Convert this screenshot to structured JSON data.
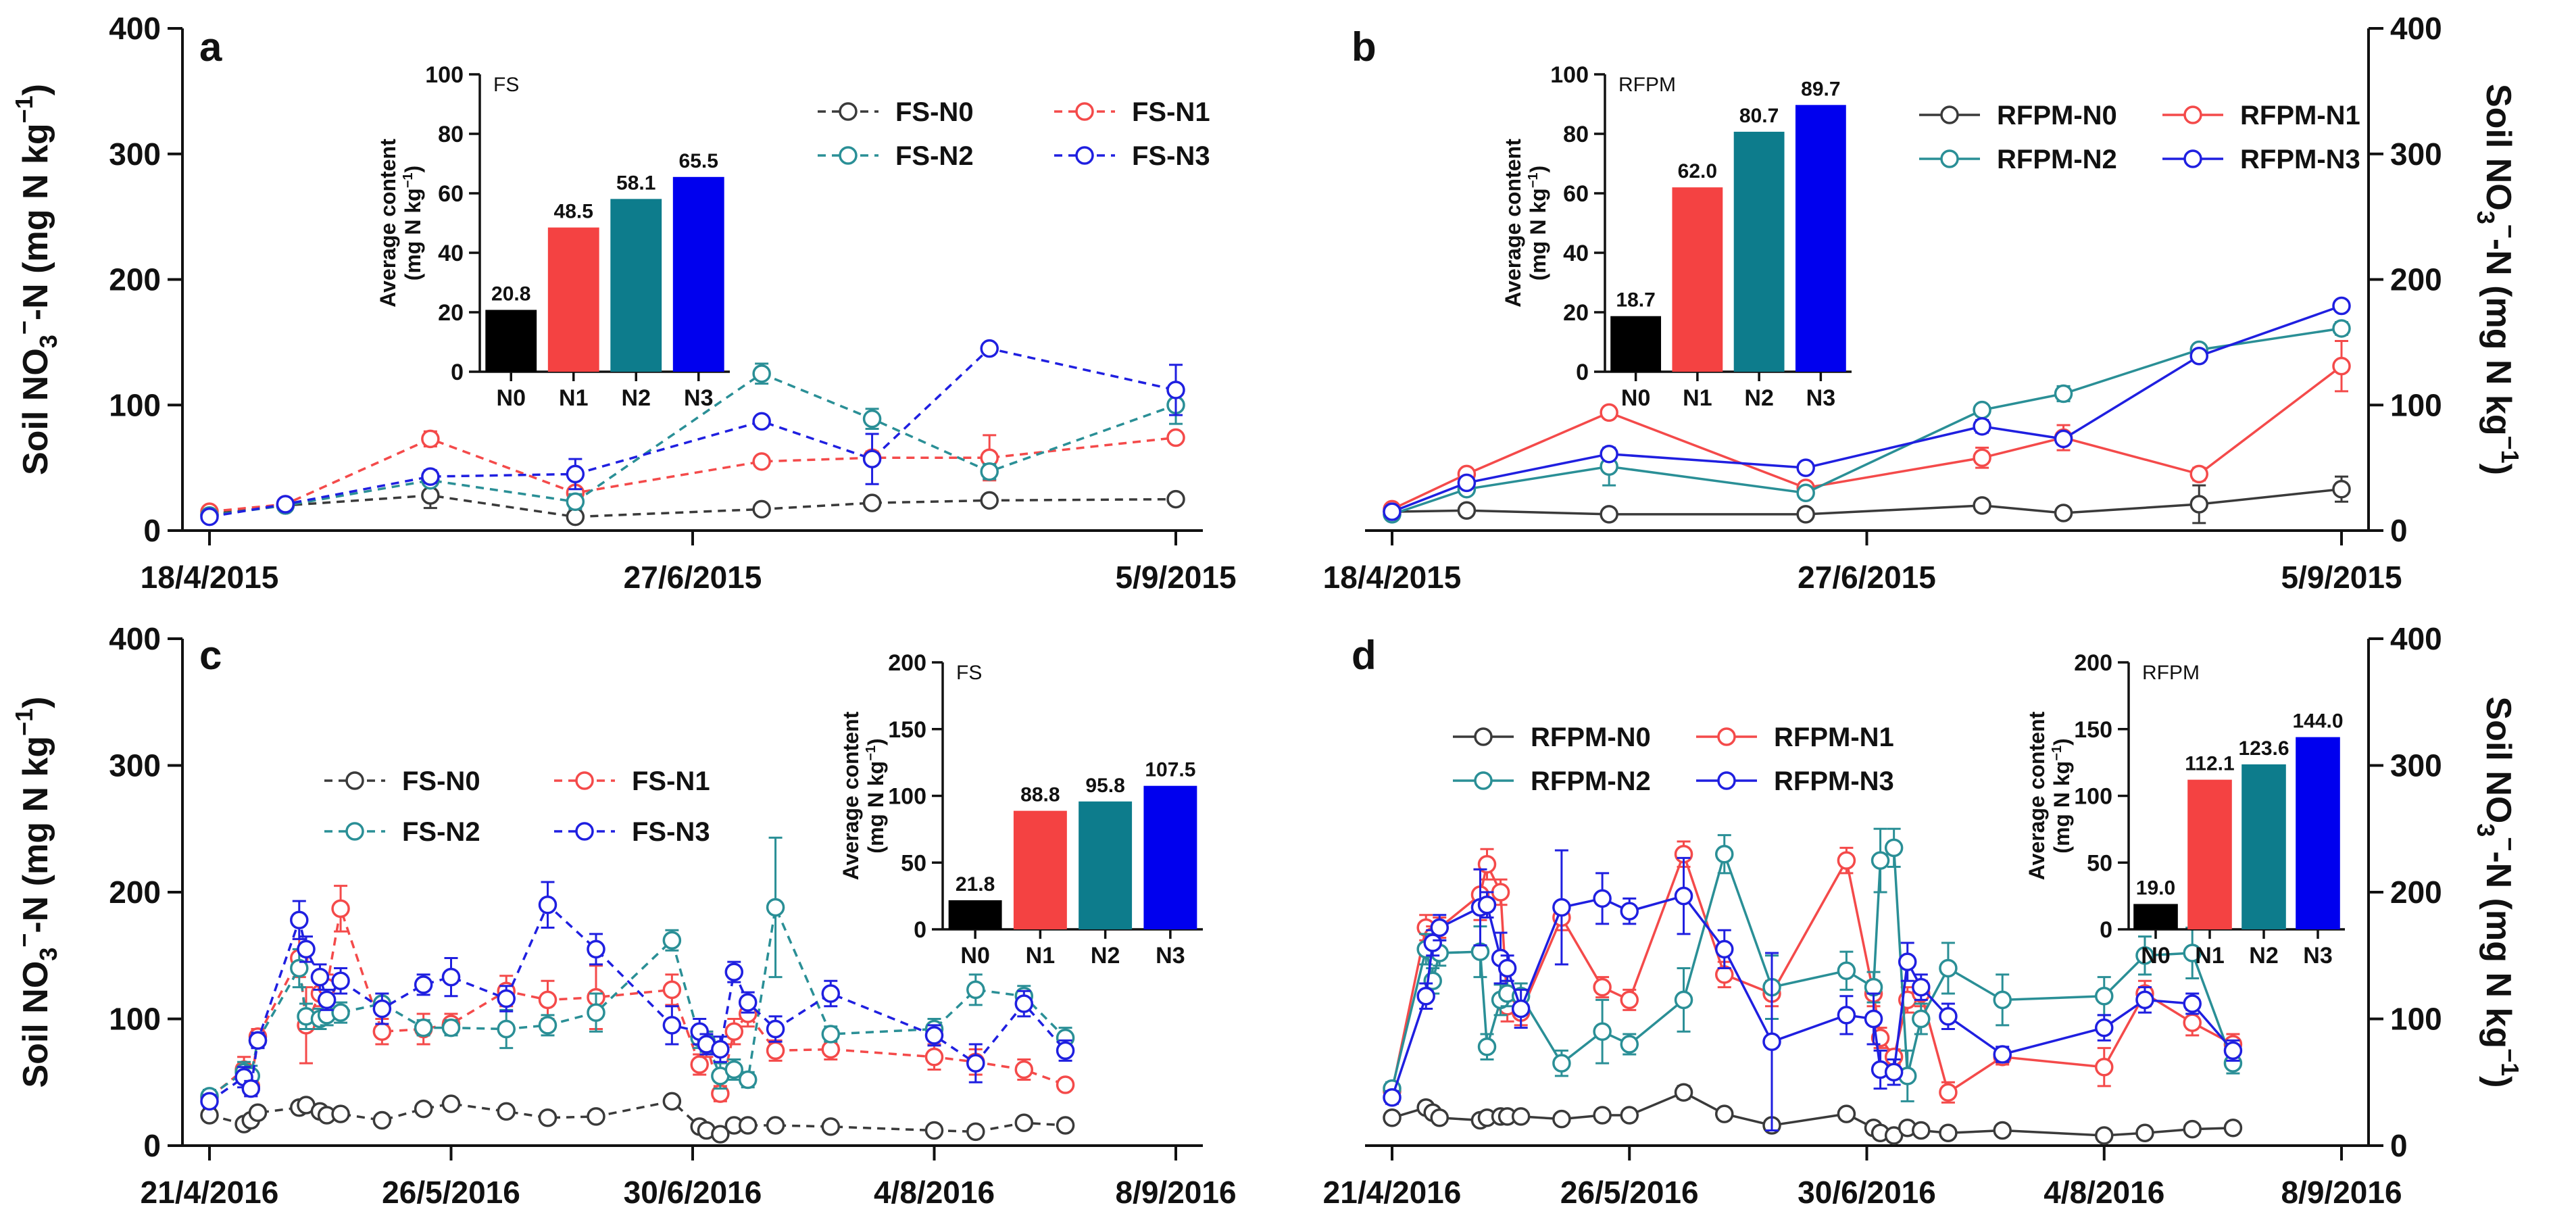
{
  "colors": {
    "N0": "#3a3a3a",
    "N1": "#f44a4a",
    "N2": "#2a8f96",
    "N3": "#1f1fe0",
    "bar_N0": "#000000",
    "bar_N1": "#f44242",
    "bar_N2": "#0d7c8c",
    "bar_N3": "#0000ee"
  },
  "chart_data": [
    {
      "type": "line",
      "panel": "a",
      "axis_side": "left",
      "ylabel_main": "Soil NO",
      "ylabel_sub": "3",
      "ylabel_sup": "−",
      "ylabel_rest": "-N (mg N kg",
      "ylabel_exp": "−1",
      "ylabel_close": ")",
      "ylim": [
        0,
        400
      ],
      "yticks": [
        0,
        100,
        200,
        300,
        400
      ],
      "xlim": [
        0,
        140
      ],
      "xticks": [
        {
          "x": 0,
          "label": "18/4/2015"
        },
        {
          "x": 70,
          "label": "27/6/2015"
        },
        {
          "x": 140,
          "label": "5/9/2015"
        }
      ],
      "dashed": true,
      "legend": {
        "placement": "top-right",
        "entries": [
          "FS-N0",
          "FS-N1",
          "FS-N2",
          "FS-N3"
        ]
      },
      "x": [
        0,
        11,
        32,
        53,
        80,
        96,
        113,
        140
      ],
      "series": [
        {
          "name": "FS-N0",
          "key": "N0",
          "values": [
            13,
            20,
            28,
            11,
            17,
            22,
            24,
            25
          ],
          "err": [
            2,
            2,
            10,
            2,
            2,
            2,
            2,
            2
          ]
        },
        {
          "name": "FS-N1",
          "key": "N1",
          "values": [
            15,
            21,
            73,
            30,
            55,
            58,
            58,
            74
          ],
          "err": [
            2,
            3,
            6,
            4,
            3,
            5,
            18,
            4
          ]
        },
        {
          "name": "FS-N2",
          "key": "N2",
          "values": [
            12,
            20,
            40,
            23,
            125,
            89,
            47,
            100
          ],
          "err": [
            2,
            3,
            4,
            6,
            8,
            8,
            6,
            15
          ]
        },
        {
          "name": "FS-N3",
          "key": "N3",
          "values": [
            11,
            21,
            43,
            45,
            87,
            57,
            145,
            112
          ],
          "err": [
            2,
            3,
            5,
            12,
            3,
            20,
            3,
            20
          ]
        }
      ],
      "inset": {
        "tag": "FS",
        "title_line1": "Average content",
        "title_line2": "(mg N kg",
        "title_exp": "−1",
        "title_close": ")",
        "ylim": [
          0,
          100
        ],
        "yticks": [
          0,
          20,
          40,
          60,
          80,
          100
        ],
        "categories": [
          "N0",
          "N1",
          "N2",
          "N3"
        ],
        "values": [
          20.8,
          48.5,
          58.1,
          65.5
        ],
        "labels": [
          "20.8",
          "48.5",
          "58.1",
          "65.5"
        ]
      }
    },
    {
      "type": "line",
      "panel": "b",
      "axis_side": "right",
      "ylabel_main": "Soil NO",
      "ylabel_sub": "3",
      "ylabel_sup": "−",
      "ylabel_rest": "-N (mg N kg",
      "ylabel_exp": "−1",
      "ylabel_close": ")",
      "ylim": [
        0,
        400
      ],
      "yticks": [
        0,
        100,
        200,
        300,
        400
      ],
      "xlim": [
        0,
        140
      ],
      "xticks": [
        {
          "x": 0,
          "label": "18/4/2015"
        },
        {
          "x": 70,
          "label": "27/6/2015"
        },
        {
          "x": 140,
          "label": "5/9/2015"
        }
      ],
      "dashed": false,
      "legend": {
        "placement": "top-right",
        "entries": [
          "RFPM-N0",
          "RFPM-N1",
          "RFPM-N2",
          "RFPM-N3"
        ]
      },
      "x": [
        0,
        11,
        32,
        61,
        87,
        99,
        119,
        140
      ],
      "series": [
        {
          "name": "RFPM-N0",
          "key": "N0",
          "values": [
            15,
            16,
            13,
            13,
            20,
            14,
            21,
            33
          ],
          "err": [
            2,
            2,
            2,
            3,
            2,
            2,
            15,
            10
          ]
        },
        {
          "name": "RFPM-N1",
          "key": "N1",
          "values": [
            17,
            45,
            94,
            34,
            58,
            74,
            45,
            131
          ],
          "err": [
            2,
            2,
            4,
            4,
            8,
            10,
            5,
            20
          ]
        },
        {
          "name": "RFPM-N2",
          "key": "N2",
          "values": [
            13,
            33,
            51,
            30,
            96,
            109,
            144,
            161
          ],
          "err": [
            2,
            3,
            15,
            3,
            4,
            6,
            4,
            5
          ]
        },
        {
          "name": "RFPM-N3",
          "key": "N3",
          "values": [
            15,
            38,
            61,
            50,
            83,
            73,
            139,
            179
          ],
          "err": [
            2,
            4,
            4,
            3,
            5,
            4,
            4,
            4
          ]
        }
      ],
      "inset": {
        "tag": "RFPM",
        "title_line1": "Average content",
        "title_line2": "(mg N kg",
        "title_exp": "−1",
        "title_close": ")",
        "ylim": [
          0,
          100
        ],
        "yticks": [
          0,
          20,
          40,
          60,
          80,
          100
        ],
        "categories": [
          "N0",
          "N1",
          "N2",
          "N3"
        ],
        "values": [
          18.7,
          62.0,
          80.7,
          89.7
        ],
        "labels": [
          "18.7",
          "62.0",
          "80.7",
          "89.7"
        ]
      }
    },
    {
      "type": "line",
      "panel": "c",
      "axis_side": "left",
      "ylabel_main": "Soil NO",
      "ylabel_sub": "3",
      "ylabel_sup": "−",
      "ylabel_rest": "-N (mg N kg",
      "ylabel_exp": "−1",
      "ylabel_close": ")",
      "ylim": [
        0,
        400
      ],
      "yticks": [
        0,
        100,
        200,
        300,
        400
      ],
      "xlim": [
        0,
        140
      ],
      "xticks": [
        {
          "x": 0,
          "label": "21/4/2016"
        },
        {
          "x": 35,
          "label": "26/5/2016"
        },
        {
          "x": 70,
          "label": "30/6/2016"
        },
        {
          "x": 105,
          "label": "4/8/2016"
        },
        {
          "x": 140,
          "label": "8/9/2016"
        }
      ],
      "dashed": true,
      "legend": {
        "placement": "center-left",
        "entries": [
          "FS-N0",
          "FS-N1",
          "FS-N2",
          "FS-N3"
        ]
      },
      "x": [
        0,
        5,
        6,
        7,
        13,
        14,
        16,
        17,
        19,
        25,
        31,
        35,
        43,
        49,
        56,
        67,
        71,
        72,
        74,
        76,
        78,
        82,
        90,
        105,
        111,
        118,
        124
      ],
      "series": [
        {
          "name": "FS-N0",
          "key": "N0",
          "values": [
            24,
            17,
            20,
            26,
            30,
            32,
            27,
            24,
            25,
            20,
            29,
            33,
            27,
            22,
            23,
            35,
            15,
            12,
            9,
            16,
            16,
            16,
            15,
            12,
            11,
            18,
            16
          ],
          "err": [
            3,
            3,
            3,
            3,
            3,
            3,
            3,
            3,
            3,
            2,
            2,
            2,
            2,
            2,
            2,
            3,
            3,
            3,
            3,
            3,
            3,
            2,
            2,
            2,
            2,
            2,
            2
          ]
        },
        {
          "name": "FS-N1",
          "key": "N1",
          "values": [
            38,
            60,
            47,
            86,
            148,
            95,
            120,
            125,
            187,
            90,
            92,
            96,
            122,
            115,
            117,
            123,
            64,
            80,
            41,
            90,
            104,
            75,
            76,
            70,
            66,
            60,
            48
          ],
          "err": [
            5,
            10,
            8,
            6,
            15,
            30,
            10,
            10,
            18,
            10,
            12,
            8,
            12,
            15,
            25,
            12,
            8,
            10,
            6,
            10,
            10,
            8,
            8,
            10,
            10,
            8,
            4
          ]
        },
        {
          "name": "FS-N2",
          "key": "N2",
          "values": [
            39,
            58,
            55,
            83,
            140,
            102,
            100,
            103,
            105,
            112,
            93,
            93,
            92,
            95,
            105,
            162,
            85,
            82,
            55,
            60,
            52,
            188,
            88,
            92,
            123,
            118,
            85
          ],
          "err": [
            5,
            8,
            8,
            6,
            15,
            10,
            8,
            8,
            8,
            8,
            6,
            6,
            15,
            8,
            15,
            8,
            8,
            8,
            10,
            8,
            6,
            55,
            6,
            8,
            12,
            8,
            8
          ]
        },
        {
          "name": "FS-N3",
          "key": "N3",
          "values": [
            35,
            54,
            45,
            83,
            178,
            155,
            133,
            115,
            130,
            108,
            127,
            133,
            116,
            190,
            155,
            95,
            90,
            80,
            76,
            137,
            113,
            92,
            120,
            87,
            65,
            112,
            75
          ],
          "err": [
            5,
            8,
            6,
            6,
            15,
            10,
            10,
            8,
            10,
            12,
            8,
            15,
            10,
            18,
            12,
            15,
            10,
            8,
            10,
            8,
            8,
            10,
            10,
            8,
            15,
            10,
            8
          ]
        }
      ],
      "inset": {
        "tag": "FS",
        "title_line1": "Average content",
        "title_line2": "(mg N kg",
        "title_exp": "−1",
        "title_close": ")",
        "ylim": [
          0,
          200
        ],
        "yticks": [
          0,
          50,
          100,
          150,
          200
        ],
        "categories": [
          "N0",
          "N1",
          "N2",
          "N3"
        ],
        "values": [
          21.8,
          88.8,
          95.8,
          107.5
        ],
        "labels": [
          "21.8",
          "88.8",
          "95.8",
          "107.5"
        ]
      }
    },
    {
      "type": "line",
      "panel": "d",
      "axis_side": "right",
      "ylabel_main": "Soil NO",
      "ylabel_sub": "3",
      "ylabel_sup": "−",
      "ylabel_rest": "-N (mg N kg",
      "ylabel_exp": "−1",
      "ylabel_close": ")",
      "ylim": [
        0,
        400
      ],
      "yticks": [
        0,
        100,
        200,
        300,
        400
      ],
      "xlim": [
        0,
        140
      ],
      "xticks": [
        {
          "x": 0,
          "label": "21/4/2016"
        },
        {
          "x": 35,
          "label": "26/5/2016"
        },
        {
          "x": 70,
          "label": "30/6/2016"
        },
        {
          "x": 105,
          "label": "4/8/2016"
        },
        {
          "x": 140,
          "label": "8/9/2016"
        }
      ],
      "dashed": false,
      "legend": {
        "placement": "top-center",
        "entries": [
          "RFPM-N0",
          "RFPM-N1",
          "RFPM-N2",
          "RFPM-N3"
        ]
      },
      "x": [
        0,
        5,
        6,
        7,
        13,
        14,
        16,
        17,
        19,
        25,
        31,
        35,
        43,
        49,
        56,
        67,
        71,
        72,
        74,
        76,
        78,
        82,
        90,
        105,
        111,
        118,
        124
      ],
      "series": [
        {
          "name": "RFPM-N0",
          "key": "N0",
          "values": [
            22,
            30,
            26,
            22,
            20,
            22,
            23,
            23,
            23,
            21,
            24,
            24,
            42,
            25,
            16,
            25,
            14,
            10,
            8,
            14,
            12,
            10,
            12,
            8,
            10,
            13,
            14
          ],
          "err": [
            3,
            3,
            3,
            3,
            2,
            2,
            2,
            2,
            2,
            2,
            2,
            2,
            5,
            2,
            2,
            2,
            2,
            2,
            2,
            2,
            2,
            2,
            2,
            2,
            2,
            2,
            2
          ]
        },
        {
          "name": "RFPM-N1",
          "key": "N1",
          "values": [
            43,
            172,
            165,
            172,
            198,
            222,
            200,
            110,
            105,
            180,
            125,
            115,
            230,
            135,
            120,
            225,
            120,
            85,
            70,
            115,
            120,
            42,
            70,
            62,
            120,
            97,
            80
          ],
          "err": [
            5,
            10,
            8,
            8,
            20,
            12,
            10,
            12,
            10,
            10,
            8,
            8,
            10,
            10,
            10,
            10,
            10,
            8,
            6,
            10,
            10,
            8,
            6,
            15,
            10,
            10,
            8
          ]
        },
        {
          "name": "RFPM-N2",
          "key": "N2",
          "values": [
            45,
            155,
            130,
            152,
            153,
            78,
            115,
            120,
            118,
            65,
            90,
            80,
            115,
            230,
            125,
            138,
            125,
            225,
            235,
            55,
            100,
            140,
            115,
            118,
            150,
            152,
            65
          ],
          "err": [
            5,
            12,
            10,
            10,
            20,
            10,
            12,
            10,
            10,
            10,
            25,
            8,
            25,
            15,
            25,
            15,
            12,
            25,
            15,
            20,
            12,
            20,
            20,
            15,
            15,
            20,
            8
          ]
        },
        {
          "name": "RFPM-N3",
          "key": "N3",
          "values": [
            38,
            118,
            160,
            172,
            188,
            190,
            148,
            140,
            108,
            188,
            195,
            185,
            197,
            155,
            82,
            103,
            100,
            60,
            58,
            145,
            125,
            102,
            72,
            93,
            115,
            112,
            75
          ],
          "err": [
            5,
            10,
            10,
            10,
            30,
            10,
            20,
            10,
            15,
            45,
            20,
            10,
            30,
            15,
            70,
            15,
            20,
            15,
            10,
            15,
            10,
            10,
            6,
            10,
            10,
            8,
            8
          ]
        }
      ],
      "inset": {
        "tag": "RFPM",
        "title_line1": "Average content",
        "title_line2": "(mg N kg",
        "title_exp": "−1",
        "title_close": ")",
        "ylim": [
          0,
          200
        ],
        "yticks": [
          0,
          50,
          100,
          150,
          200
        ],
        "categories": [
          "N0",
          "N1",
          "N2",
          "N3"
        ],
        "values": [
          19.0,
          112.1,
          123.6,
          144.0
        ],
        "labels": [
          "19.0",
          "112.1",
          "123.6",
          "144.0"
        ]
      }
    }
  ]
}
